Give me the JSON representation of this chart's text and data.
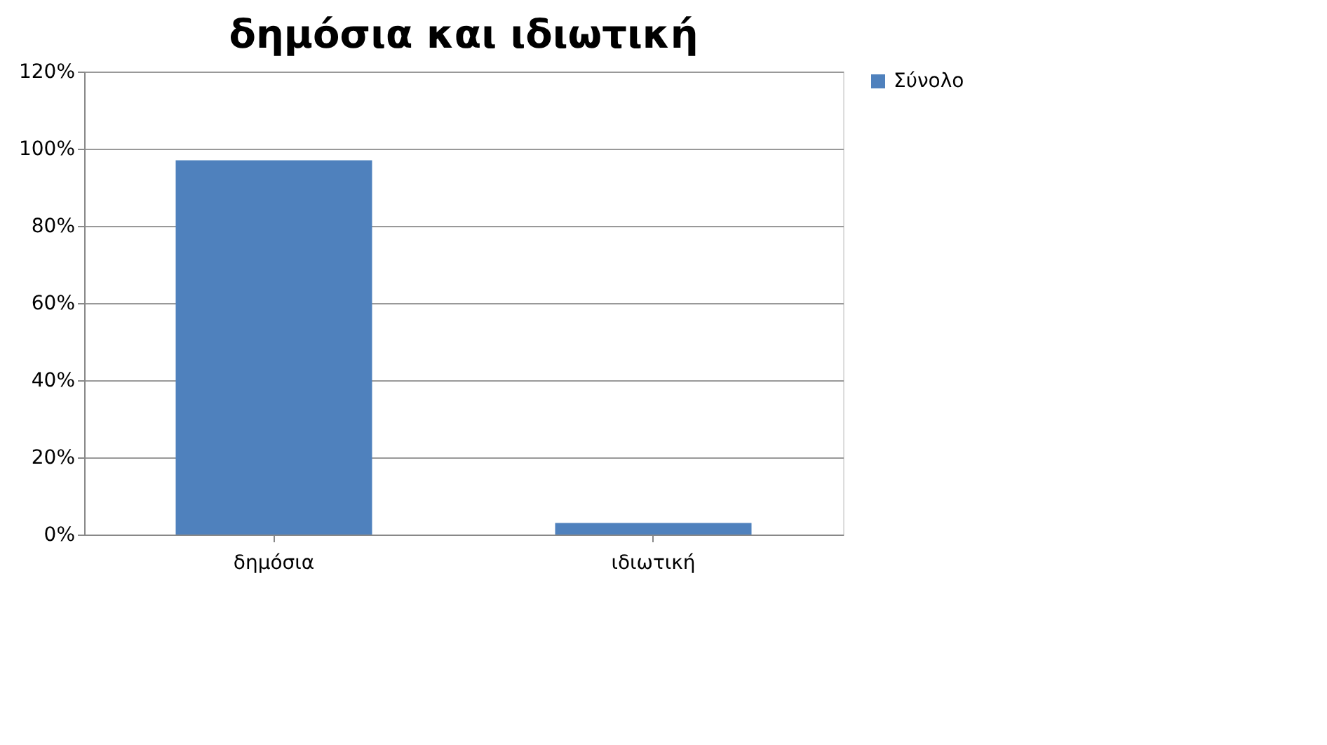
{
  "chart_data": {
    "type": "bar",
    "title": "δημόσια και ιδιωτική",
    "categories": [
      "δημόσια",
      "ιδιωτική"
    ],
    "series": [
      {
        "name": "Σύνολο",
        "color": "#4f81bd",
        "values": [
          97,
          3
        ]
      }
    ],
    "ylim": [
      0,
      120
    ],
    "yticks": [
      {
        "value": 0,
        "label": "0%"
      },
      {
        "value": 20,
        "label": "20%"
      },
      {
        "value": 40,
        "label": "40%"
      },
      {
        "value": 60,
        "label": "60%"
      },
      {
        "value": 80,
        "label": "80%"
      },
      {
        "value": 100,
        "label": "100%"
      },
      {
        "value": 120,
        "label": "120%"
      }
    ],
    "grid": "y",
    "legend": "right"
  }
}
